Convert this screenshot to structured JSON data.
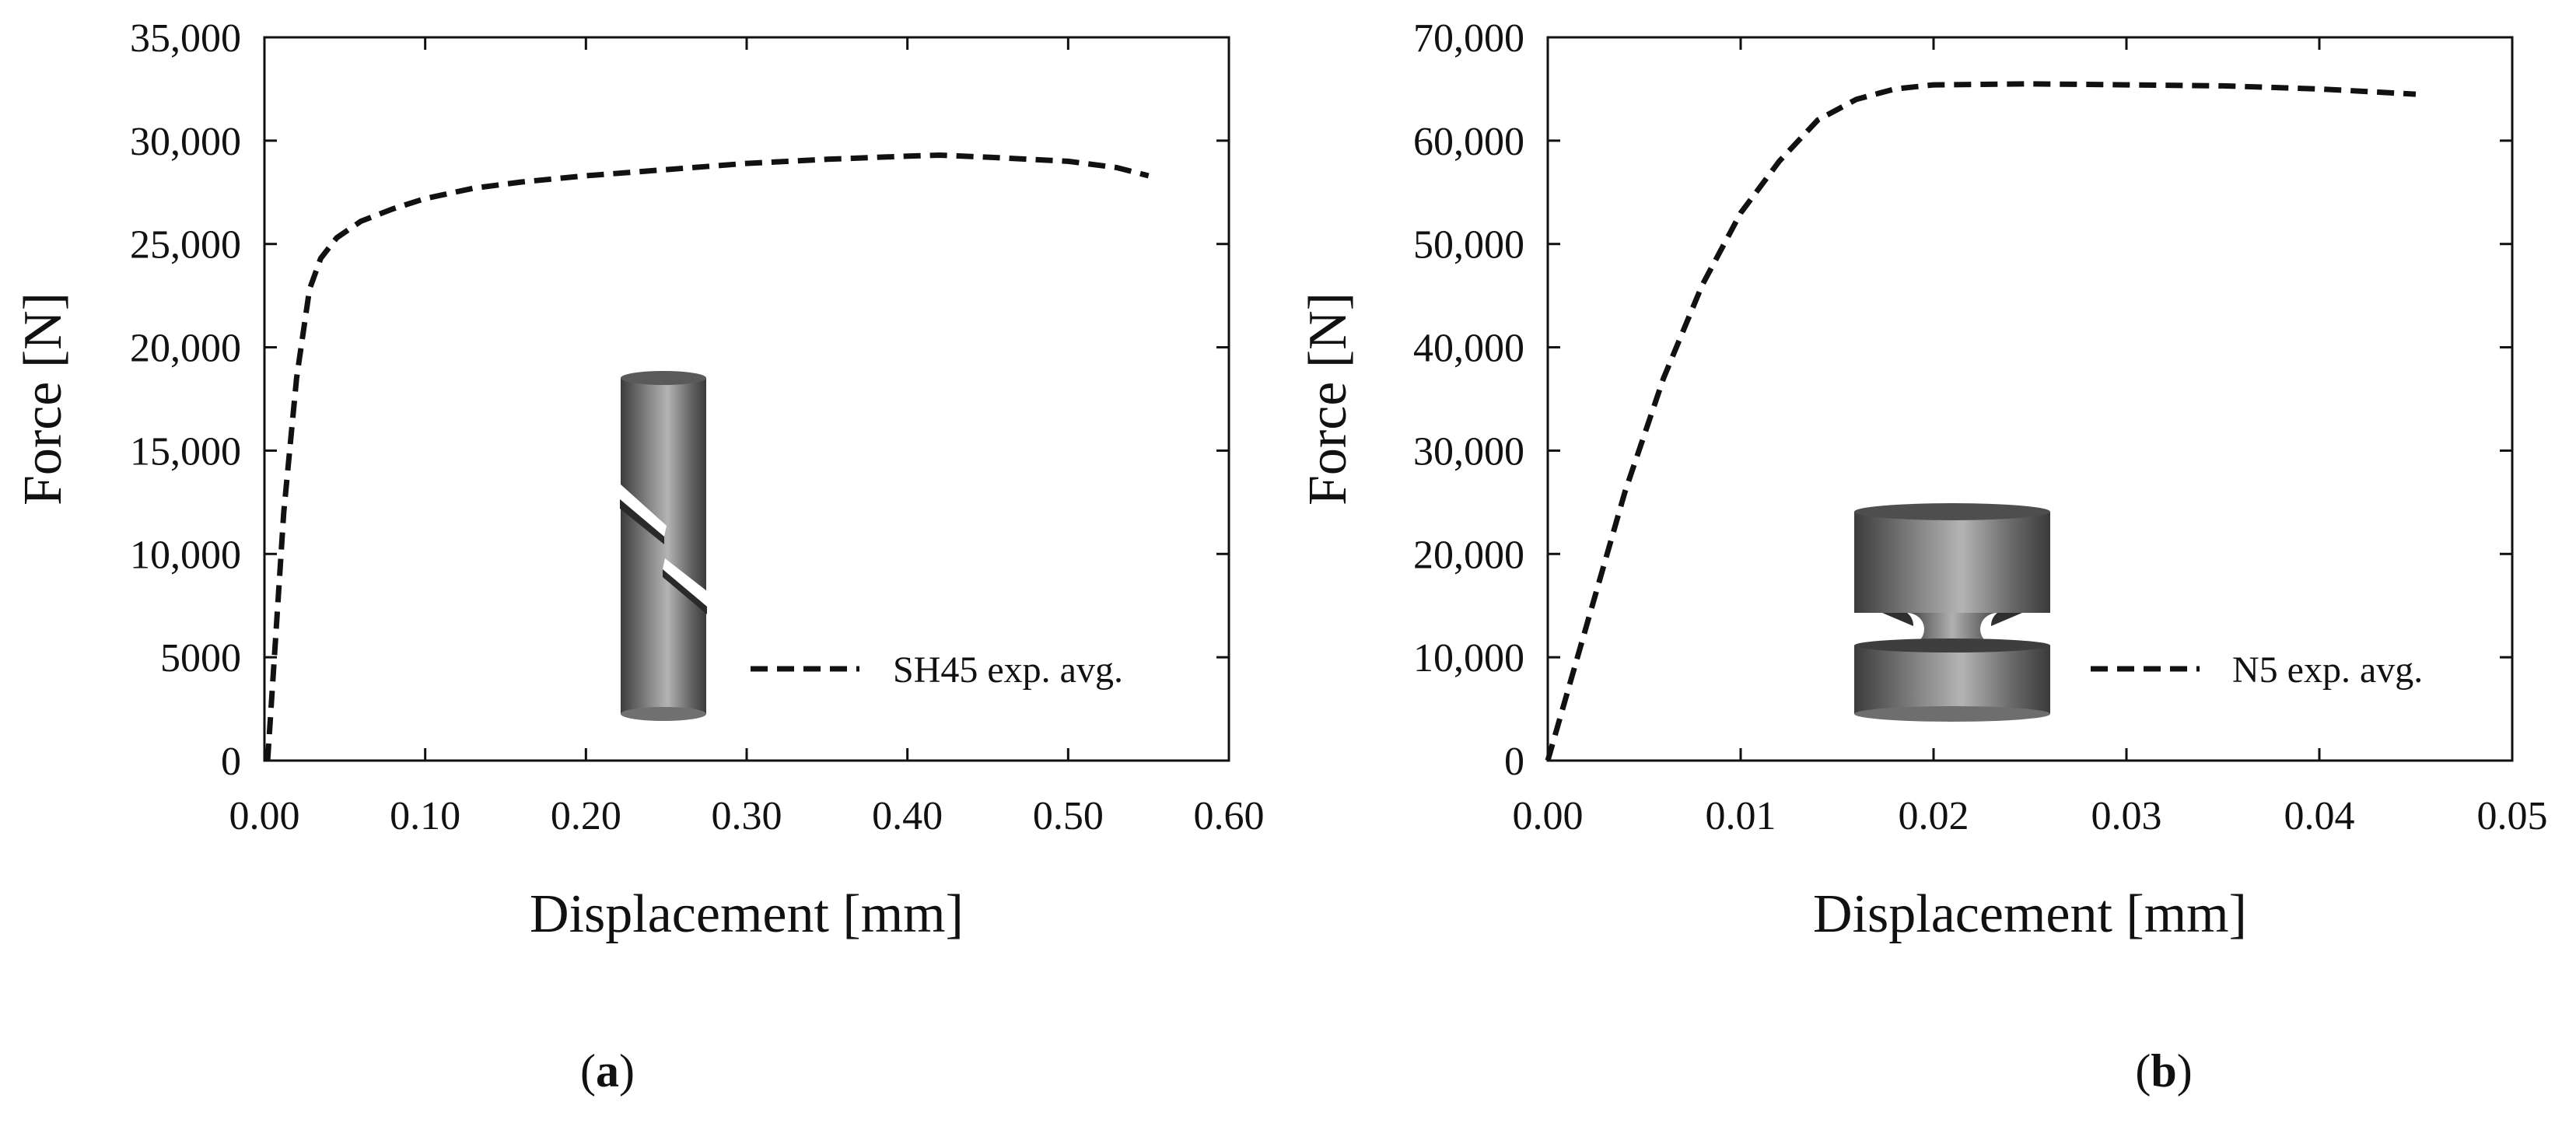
{
  "chart_data": [
    {
      "type": "line",
      "panel_label": "a",
      "xlabel": "Displacement [mm]",
      "ylabel": "Force [N]",
      "xlim": [
        0,
        0.6
      ],
      "ylim": [
        0,
        35000
      ],
      "xticks": [
        "0.00",
        "0.10",
        "0.20",
        "0.30",
        "0.40",
        "0.50",
        "0.60"
      ],
      "yticks": [
        "0",
        "5000",
        "10,000",
        "15,000",
        "20,000",
        "25,000",
        "30,000",
        "35,000"
      ],
      "grid": false,
      "legend_position": "bottom-right",
      "inset": "cylinder specimen with two inclined notches (icon)",
      "series": [
        {
          "name": "SH45 exp. avg.",
          "x": [
            0.002,
            0.007,
            0.012,
            0.02,
            0.028,
            0.035,
            0.045,
            0.06,
            0.08,
            0.1,
            0.13,
            0.16,
            0.2,
            0.25,
            0.3,
            0.35,
            0.4,
            0.42,
            0.45,
            0.5,
            0.53,
            0.55
          ],
          "y": [
            0,
            6000,
            12000,
            18500,
            22800,
            24300,
            25300,
            26100,
            26700,
            27200,
            27700,
            28000,
            28300,
            28600,
            28900,
            29100,
            29250,
            29300,
            29200,
            29000,
            28700,
            28300
          ]
        }
      ]
    },
    {
      "type": "line",
      "panel_label": "b",
      "xlabel": "Displacement [mm]",
      "ylabel": "Force [N]",
      "xlim": [
        0,
        0.05
      ],
      "ylim": [
        0,
        70000
      ],
      "xticks": [
        "0.00",
        "0.01",
        "0.02",
        "0.03",
        "0.04",
        "0.05"
      ],
      "yticks": [
        "0",
        "10,000",
        "20,000",
        "30,000",
        "40,000",
        "50,000",
        "60,000",
        "70,000"
      ],
      "grid": false,
      "legend_position": "bottom-right",
      "inset": "double-notched cylindrical specimen (icon)",
      "series": [
        {
          "name": "N5 exp. avg.",
          "x": [
            0,
            0.002,
            0.004,
            0.006,
            0.008,
            0.01,
            0.012,
            0.014,
            0.016,
            0.018,
            0.02,
            0.025,
            0.03,
            0.035,
            0.04,
            0.043,
            0.045
          ],
          "y": [
            0,
            13000,
            26000,
            37000,
            46000,
            53000,
            58000,
            62000,
            64000,
            65000,
            65400,
            65500,
            65400,
            65300,
            65000,
            64700,
            64500
          ]
        }
      ]
    }
  ]
}
